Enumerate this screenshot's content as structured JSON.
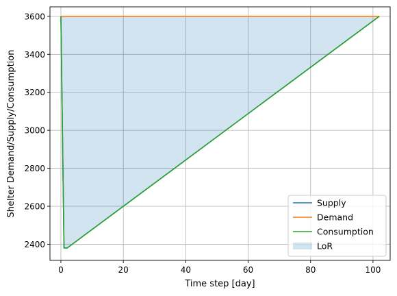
{
  "chart_data": {
    "type": "line",
    "title": "",
    "xlabel": "Time step [day]",
    "ylabel": "Shelter Demand/Supply/Consumption",
    "xlim": [
      -3.5,
      105.5
    ],
    "ylim": [
      2315,
      3650
    ],
    "xticks": [
      0,
      20,
      40,
      60,
      80,
      100
    ],
    "yticks": [
      2400,
      2600,
      2800,
      3000,
      3200,
      3400,
      3600
    ],
    "grid": true,
    "legend_position": "lower-right",
    "series": [
      {
        "name": "Supply",
        "color": "#1f77b4",
        "x": [
          0,
          1,
          2,
          102
        ],
        "y": [
          3600,
          2380,
          2380,
          3600
        ]
      },
      {
        "name": "Demand",
        "color": "#ff7f0e",
        "x": [
          0,
          102
        ],
        "y": [
          3600,
          3600
        ]
      },
      {
        "name": "Consumption",
        "color": "#2ca02c",
        "x": [
          0,
          1,
          2,
          102
        ],
        "y": [
          3600,
          2380,
          2380,
          3600
        ]
      }
    ],
    "fill": {
      "name": "LoR",
      "color": "#1f77b4",
      "opacity": 0.2,
      "upper_series": "Demand",
      "lower_series": "Consumption"
    }
  }
}
